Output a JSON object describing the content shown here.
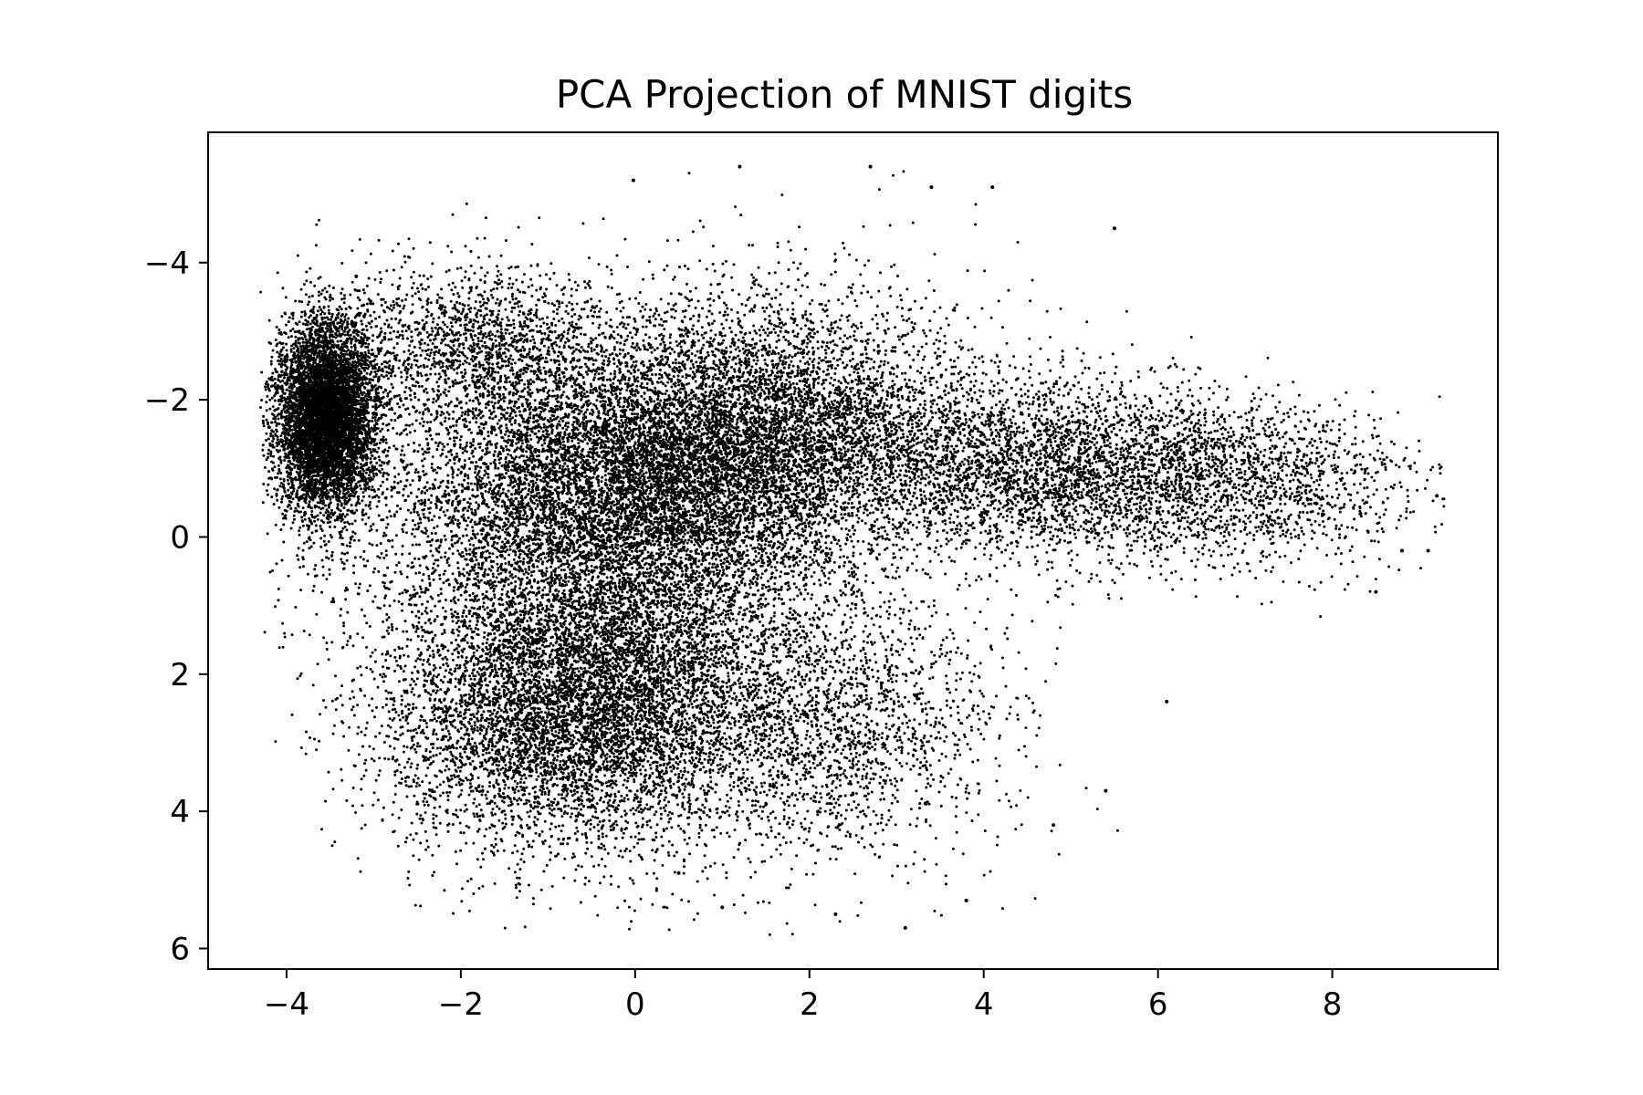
{
  "chart_data": {
    "type": "scatter",
    "title": "PCA Projection of MNIST digits",
    "xlabel": "",
    "ylabel": "",
    "xlim": [
      -4.9,
      9.9
    ],
    "ylim": [
      6.3,
      -5.9
    ],
    "y_inverted": true,
    "x_ticks": [
      -4,
      -2,
      0,
      2,
      4,
      6,
      8
    ],
    "y_ticks": [
      -4,
      -2,
      0,
      2,
      4,
      6
    ],
    "x_tick_labels": [
      "−4",
      "−2",
      "0",
      "2",
      "4",
      "6",
      "8"
    ],
    "y_tick_labels": [
      "−4",
      "−2",
      "0",
      "2",
      "4",
      "6"
    ],
    "grid": false,
    "legend": "none",
    "marker_color": "#000000",
    "point_count_approx": 60000,
    "point_cloud_summary": [
      {
        "region": "left dense lobe",
        "center": [
          -3.6,
          -1.7
        ],
        "extent_x": [
          -4.2,
          -3.0
        ],
        "extent_y": [
          -3.5,
          -0.2
        ]
      },
      {
        "region": "central mass",
        "center": [
          0.0,
          -0.5
        ],
        "extent_x": [
          -2.5,
          3.0
        ],
        "extent_y": [
          -4.5,
          1.5
        ]
      },
      {
        "region": "lower lobe",
        "center": [
          -0.5,
          3.0
        ],
        "extent_x": [
          -2.5,
          2.0
        ],
        "extent_y": [
          1.0,
          5.2
        ]
      },
      {
        "region": "right tail",
        "center": [
          6.5,
          -1.0
        ],
        "extent_x": [
          4.0,
          9.2
        ],
        "extent_y": [
          -2.8,
          1.3
        ]
      }
    ],
    "sample_points": [
      [
        1.2,
        -5.4
      ],
      [
        2.7,
        -5.4
      ],
      [
        -0.02,
        -5.2
      ],
      [
        3.4,
        -5.1
      ],
      [
        4.1,
        -5.1
      ],
      [
        5.5,
        -4.5
      ],
      [
        9.2,
        -0.6
      ],
      [
        9.1,
        0.2
      ],
      [
        8.8,
        0.2
      ],
      [
        8.5,
        0.8
      ],
      [
        6.1,
        2.4
      ],
      [
        5.4,
        3.7
      ],
      [
        4.8,
        4.2
      ],
      [
        3.8,
        5.3
      ],
      [
        3.1,
        5.7
      ],
      [
        2.3,
        5.5
      ],
      [
        1.0,
        5.4
      ],
      [
        -4.2,
        -1.6
      ],
      [
        -4.1,
        -2.2
      ],
      [
        -4.0,
        -0.6
      ],
      [
        -3.2,
        -3.8
      ],
      [
        -2.0,
        2.7
      ],
      [
        -1.5,
        3.8
      ],
      [
        0.5,
        4.9
      ]
    ]
  }
}
